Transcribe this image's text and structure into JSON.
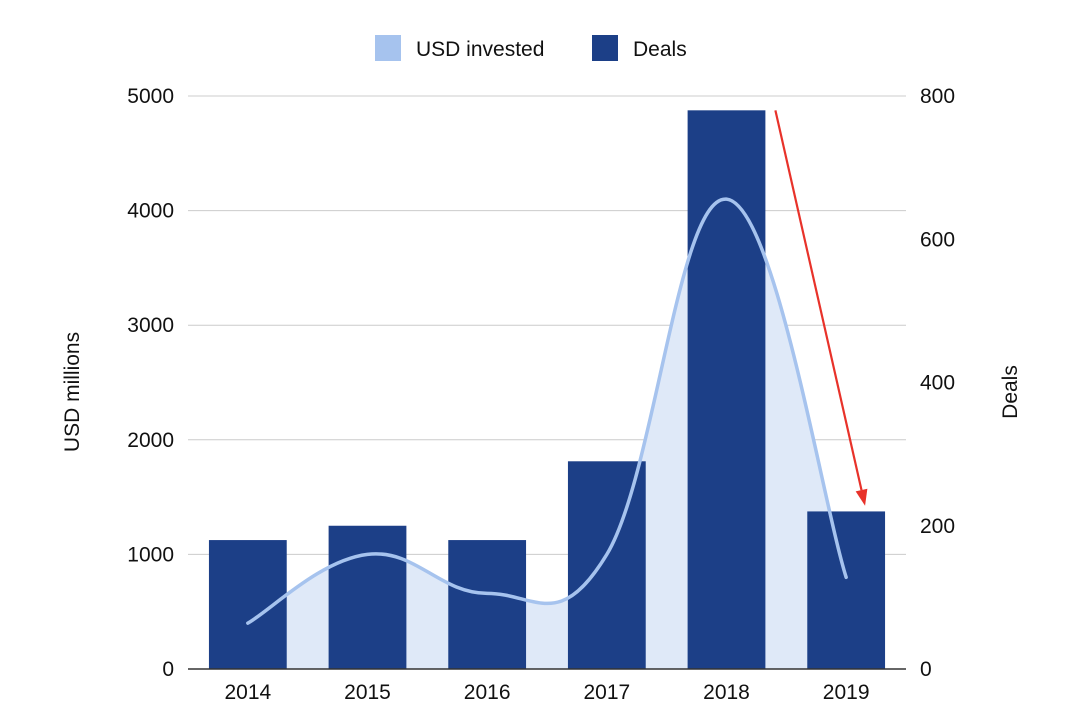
{
  "chart_data": {
    "type": "bar",
    "categories": [
      "2014",
      "2015",
      "2016",
      "2017",
      "2018",
      "2019"
    ],
    "series": [
      {
        "name": "USD invested",
        "type": "area",
        "axis": "left",
        "color": "#a6c3ee",
        "fill": "#dfe9f8",
        "values": [
          400,
          1000,
          660,
          1000,
          4100,
          800
        ]
      },
      {
        "name": "Deals",
        "type": "bar",
        "axis": "right",
        "color": "#1c3f87",
        "values": [
          180,
          200,
          180,
          290,
          780,
          220
        ]
      }
    ],
    "ylabel": "USD millions",
    "y2label": "Deals",
    "ylim": [
      0,
      5000
    ],
    "y2lim": [
      0,
      800
    ],
    "yticks": [
      0,
      1000,
      2000,
      3000,
      4000,
      5000
    ],
    "y2ticks": [
      0,
      200,
      400,
      600,
      800
    ],
    "grid": true,
    "legend_position": "top-center",
    "annotation": {
      "type": "arrow",
      "color": "#e8322a",
      "from": {
        "category": "2018",
        "y2": 780
      },
      "to": {
        "category": "2019",
        "y2": 228
      }
    }
  }
}
